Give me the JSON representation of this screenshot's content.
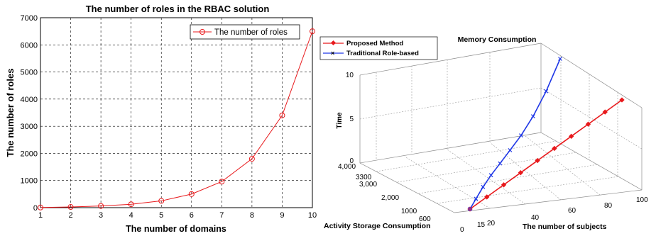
{
  "chart_data": [
    {
      "type": "line",
      "title": "The number of roles in the RBAC solution",
      "xlabel": "The number of domains",
      "ylabel": "The number of roles",
      "xlim": [
        1,
        10
      ],
      "ylim": [
        0,
        7000
      ],
      "x_ticks": [
        "1",
        "2",
        "3",
        "4",
        "5",
        "6",
        "7",
        "8",
        "9",
        "10"
      ],
      "y_ticks": [
        "0",
        "1000",
        "2000",
        "3000",
        "4000",
        "5000",
        "6000",
        "7000"
      ],
      "grid": true,
      "legend_position": "top-right",
      "series": [
        {
          "name": "The number of roles",
          "color": "#e8191c",
          "marker": "circle",
          "x": [
            1,
            2,
            3,
            4,
            5,
            6,
            7,
            8,
            9,
            10
          ],
          "values": [
            6,
            25,
            62,
            125,
            250,
            500,
            960,
            1800,
            3400,
            6500
          ]
        }
      ]
    },
    {
      "type": "line",
      "projection": "3d",
      "title": "Memory Consumption",
      "xlabel": "The number of subjects",
      "ylabel": "Activity Storage Consumption",
      "zlabel": "Time",
      "x_ticks": [
        "0",
        "15",
        "20",
        "40",
        "60",
        "80",
        "100"
      ],
      "y_ticks": [
        "600",
        "1000",
        "2,000",
        "3,000",
        "3300",
        "4,000"
      ],
      "z_ticks": [
        "0",
        "5",
        "10"
      ],
      "grid": true,
      "legend_position": "top-left",
      "series": [
        {
          "name": "Proposed Method",
          "color": "#e8191c",
          "marker": "diamond",
          "x": [
            10,
            20,
            30,
            40,
            50,
            60,
            70,
            80,
            90,
            100
          ],
          "y": [
            600,
            1000,
            1400,
            1800,
            2200,
            2600,
            3000,
            3400,
            3800,
            4200
          ],
          "z": [
            0.3,
            1.0,
            1.7,
            2.4,
            3.1,
            3.8,
            4.5,
            5.2,
            5.9,
            6.6
          ]
        },
        {
          "name": "Traditional Role-based",
          "color": "#1f37e6",
          "marker": "x",
          "x": [
            10,
            20,
            30,
            40,
            50,
            60,
            70,
            80,
            90,
            100
          ],
          "y": [
            600,
            900,
            1200,
            1500,
            1800,
            2100,
            2400,
            2700,
            3000,
            3300
          ],
          "z": [
            0.3,
            1.0,
            1.8,
            2.6,
            3.4,
            4.3,
            5.3,
            6.6,
            8.3,
            10.5
          ]
        }
      ]
    }
  ]
}
